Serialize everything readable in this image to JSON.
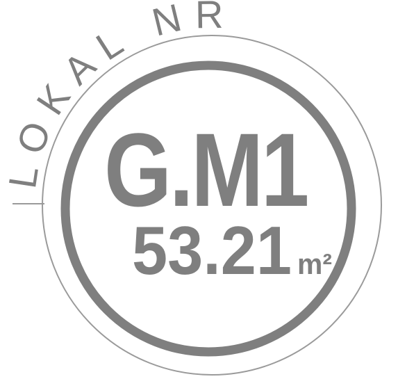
{
  "label": "LOKAL NR",
  "code": "G.M1",
  "area": "53.21",
  "unit": "m²"
}
